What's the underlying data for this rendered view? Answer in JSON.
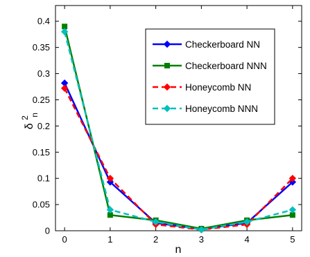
{
  "chart_data": {
    "type": "line",
    "xlabel": "n",
    "ylabel_base": "δ",
    "ylabel_sup": "2",
    "ylabel_sub": "n",
    "xlim": [
      -0.2,
      5.2
    ],
    "ylim": [
      0,
      0.43
    ],
    "xticks": [
      0,
      1,
      2,
      3,
      4,
      5
    ],
    "yticks": [
      0,
      0.05,
      0.1,
      0.15,
      0.2,
      0.25,
      0.3,
      0.35,
      0.4
    ],
    "xtick_labels": [
      "0",
      "1",
      "2",
      "3",
      "4",
      "5"
    ],
    "ytick_labels": [
      "0",
      "0.05",
      "0.1",
      "0.15",
      "0.2",
      "0.25",
      "0.3",
      "0.35",
      "0.4"
    ],
    "grid": false,
    "legend_position": "top-right",
    "x": [
      0,
      1,
      2,
      3,
      4,
      5
    ],
    "series": [
      {
        "name": "Checkerboard NN",
        "values": [
          0.282,
          0.093,
          0.015,
          0.003,
          0.015,
          0.093
        ],
        "color": "#0000ff",
        "dash": "solid",
        "marker": "diamond"
      },
      {
        "name": "Checkerboard NNN",
        "values": [
          0.39,
          0.03,
          0.02,
          0.004,
          0.02,
          0.03
        ],
        "color": "#007f00",
        "dash": "solid",
        "marker": "square"
      },
      {
        "name": "Honeycomb NN",
        "values": [
          0.272,
          0.1,
          0.012,
          0.002,
          0.012,
          0.1
        ],
        "color": "#ff0000",
        "dash": "dashed",
        "marker": "diamond"
      },
      {
        "name": "Honeycomb NNN",
        "values": [
          0.38,
          0.04,
          0.017,
          0.002,
          0.017,
          0.04
        ],
        "color": "#00bfbf",
        "dash": "dashed",
        "marker": "diamond"
      }
    ]
  }
}
